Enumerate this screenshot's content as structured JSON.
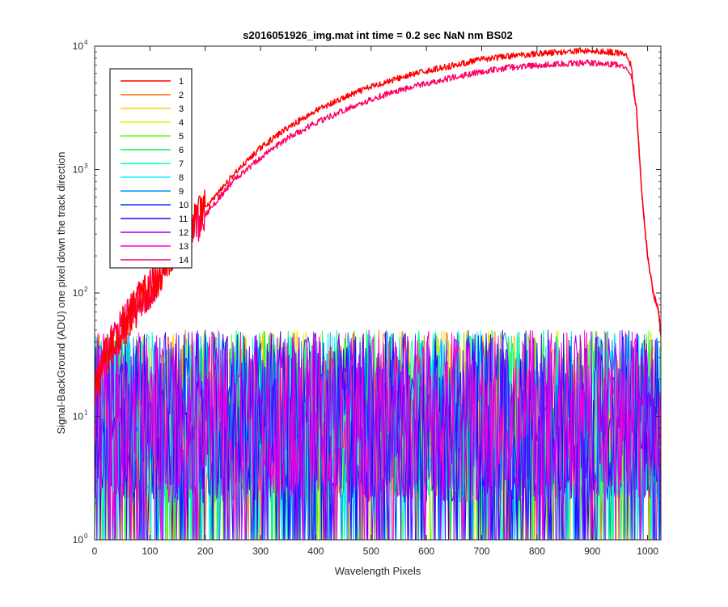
{
  "chart_data": {
    "type": "line",
    "title": "s2016051926_img.mat int time = 0.2 sec  NaN nm BS02",
    "xlabel": "Wavelength Pixels",
    "ylabel": "Signal-BackGround (ADU) one pixel down the track direction",
    "xlim": [
      0,
      1024
    ],
    "ylim": [
      1,
      10000
    ],
    "yscale": "log",
    "x_ticks": [
      0,
      100,
      200,
      300,
      400,
      500,
      600,
      700,
      800,
      900,
      1000
    ],
    "x_tick_labels": [
      "0",
      "100",
      "200",
      "300",
      "400",
      "500",
      "600",
      "700",
      "800",
      "900",
      "1000"
    ],
    "y_ticks": [
      1,
      10,
      100,
      1000,
      10000
    ],
    "y_tick_labels": [
      {
        "base": "10",
        "exp": "0"
      },
      {
        "base": "10",
        "exp": "1"
      },
      {
        "base": "10",
        "exp": "2"
      },
      {
        "base": "10",
        "exp": "3"
      },
      {
        "base": "10",
        "exp": "4"
      }
    ],
    "grid": false,
    "legend_position": "top-left",
    "series": [
      {
        "name": "1",
        "color": "#ff0000",
        "kind": "signal",
        "x": [
          0,
          10,
          20,
          40,
          60,
          80,
          100,
          120,
          150,
          180,
          200,
          250,
          300,
          350,
          400,
          450,
          500,
          550,
          600,
          650,
          700,
          750,
          800,
          850,
          880,
          900,
          920,
          940,
          950,
          960,
          970,
          980,
          990,
          1000,
          1010,
          1020,
          1024
        ],
        "values": [
          15,
          22,
          30,
          45,
          60,
          85,
          110,
          150,
          250,
          380,
          480,
          900,
          1500,
          2200,
          3000,
          3800,
          4700,
          5500,
          6300,
          7000,
          7800,
          8300,
          8700,
          9000,
          9200,
          9100,
          9000,
          8900,
          8800,
          8500,
          7000,
          3000,
          600,
          200,
          100,
          70,
          45
        ]
      },
      {
        "name": "2",
        "color": "#ff6a00",
        "kind": "noise"
      },
      {
        "name": "3",
        "color": "#ffc800",
        "kind": "noise"
      },
      {
        "name": "4",
        "color": "#c8ff00",
        "kind": "noise"
      },
      {
        "name": "5",
        "color": "#5aff00",
        "kind": "noise"
      },
      {
        "name": "6",
        "color": "#00ff5a",
        "kind": "noise"
      },
      {
        "name": "7",
        "color": "#00ffaa",
        "kind": "noise"
      },
      {
        "name": "8",
        "color": "#00f0ff",
        "kind": "noise"
      },
      {
        "name": "9",
        "color": "#0096ff",
        "kind": "noise"
      },
      {
        "name": "10",
        "color": "#0032ff",
        "kind": "noise"
      },
      {
        "name": "11",
        "color": "#3200ff",
        "kind": "noise"
      },
      {
        "name": "12",
        "color": "#9600ff",
        "kind": "noise"
      },
      {
        "name": "13",
        "color": "#ff00d2",
        "kind": "noise"
      },
      {
        "name": "14",
        "color": "#ff0064",
        "kind": "signal",
        "x": [
          0,
          10,
          20,
          40,
          60,
          80,
          100,
          120,
          150,
          180,
          200,
          250,
          300,
          350,
          400,
          450,
          500,
          550,
          600,
          650,
          700,
          750,
          800,
          850,
          880,
          900,
          920,
          940,
          950,
          960,
          970,
          980,
          990,
          1000,
          1010,
          1020,
          1024
        ],
        "values": [
          15,
          22,
          30,
          45,
          60,
          85,
          110,
          150,
          250,
          350,
          430,
          800,
          1250,
          1800,
          2400,
          3000,
          3700,
          4400,
          5000,
          5600,
          6200,
          6700,
          7000,
          7200,
          7300,
          7300,
          7200,
          7100,
          7000,
          6900,
          6000,
          3000,
          600,
          200,
          100,
          70,
          45
        ]
      }
    ],
    "noise_range": [
      1,
      50
    ]
  }
}
